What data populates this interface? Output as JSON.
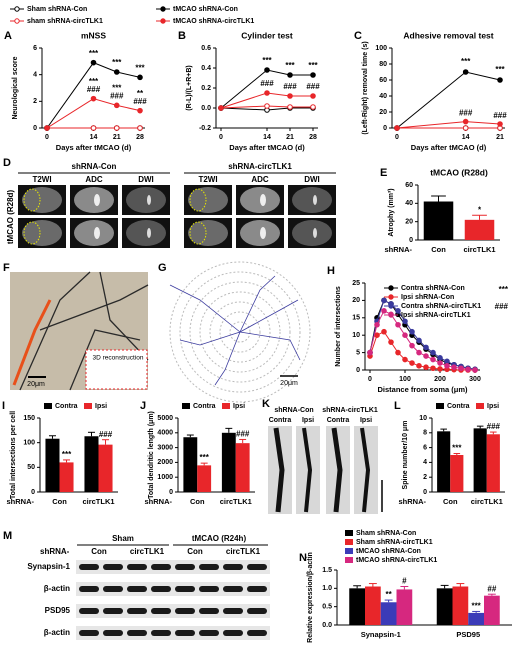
{
  "chart_data": [
    {
      "panel": "A",
      "type": "line",
      "title": "mNSS",
      "y_label": "Neurological score",
      "x_label": "Days after tMCAO (d)",
      "x": [
        0,
        14,
        21,
        28
      ],
      "xlim": [
        0,
        28
      ],
      "xticks": [
        0,
        14,
        21,
        28
      ],
      "ylim": [
        0,
        6
      ],
      "yticks": [
        0,
        2,
        4,
        6
      ],
      "series": [
        {
          "name": "Sham shRNA-Con",
          "color": "#000000",
          "marker": "open",
          "values": [
            0,
            0,
            0,
            0
          ]
        },
        {
          "name": "sham shRNA-circTLK1",
          "color": "#e8262a",
          "marker": "open",
          "values": [
            0,
            0,
            0,
            0
          ]
        },
        {
          "name": "tMCAO shRNA-Con",
          "color": "#000000",
          "marker": "filled",
          "values": [
            0,
            4.9,
            4.2,
            3.8
          ]
        },
        {
          "name": "tMCAO shRNA-circTLK1",
          "color": "#e8262a",
          "marker": "filled",
          "values": [
            0,
            2.2,
            1.7,
            1.3
          ]
        }
      ],
      "annotations": [
        "***",
        "***",
        "###",
        "***",
        "***",
        "###",
        "***",
        "**",
        "###"
      ]
    },
    {
      "panel": "B",
      "type": "line",
      "title": "Cylinder test",
      "y_label": "(R-L)/(L+R+B)",
      "x_label": "Days after tMCAO (d)",
      "x": [
        0,
        14,
        21,
        28
      ],
      "xlim": [
        0,
        28
      ],
      "xticks": [
        0,
        14,
        21,
        28
      ],
      "ylim": [
        -0.2,
        0.6
      ],
      "yticks": [
        -0.2,
        {
          "value": 0,
          "label": "0.0"
        },
        0.2,
        0.4,
        0.6
      ],
      "series": [
        {
          "color": "#000000",
          "marker": "open",
          "values": [
            0,
            -0.02,
            0,
            0
          ]
        },
        {
          "color": "#e8262a",
          "marker": "open",
          "values": [
            0,
            0.02,
            0.01,
            0.01
          ]
        },
        {
          "color": "#000000",
          "marker": "filled",
          "values": [
            0,
            0.38,
            0.33,
            0.33
          ]
        },
        {
          "color": "#e8262a",
          "marker": "filled",
          "values": [
            0,
            0.15,
            0.12,
            0.12
          ]
        }
      ],
      "annotations": [
        "***",
        "###",
        "***",
        "###",
        "***",
        "###"
      ]
    },
    {
      "panel": "C",
      "type": "line",
      "title": "Adhesive removal test",
      "y_label": "(Left-Right) removal time (s)",
      "x_label": "Days after tMCAO (d)",
      "x": [
        0,
        14,
        21
      ],
      "xlim": [
        0,
        21
      ],
      "xticks": [
        0,
        14,
        21
      ],
      "ylim": [
        0,
        100
      ],
      "yticks": [
        0,
        20,
        40,
        60,
        80,
        100
      ],
      "series": [
        {
          "color": "#000000",
          "marker": "open",
          "values": [
            0,
            0,
            0
          ]
        },
        {
          "color": "#e8262a",
          "marker": "open",
          "values": [
            0,
            0,
            0
          ]
        },
        {
          "color": "#000000",
          "marker": "filled",
          "values": [
            0,
            70,
            60
          ]
        },
        {
          "color": "#e8262a",
          "marker": "filled",
          "values": [
            0,
            8,
            5
          ]
        }
      ],
      "annotations": [
        "***",
        "###",
        "***",
        "###"
      ]
    },
    {
      "panel": "E",
      "type": "bar",
      "title": "tMCAO (R28d)",
      "y_label": "Atrophy (mm³)",
      "x_prefix": "shRNA-",
      "categories": [
        "Con",
        "circTLK1"
      ],
      "values": [
        42,
        22
      ],
      "errors": [
        6,
        5
      ],
      "colors": [
        "#000000",
        "#e8262a"
      ],
      "ylim": [
        0,
        60
      ],
      "yticks": [
        0,
        20,
        40,
        60
      ],
      "annotations": [
        "*"
      ]
    },
    {
      "panel": "H",
      "type": "line",
      "y_label": "Number of intersections",
      "x_label": "Distance from soma (μm)",
      "x": [
        0,
        20,
        40,
        60,
        80,
        100,
        120,
        140,
        160,
        180,
        200,
        220,
        240,
        260,
        280,
        300
      ],
      "xlim": [
        0,
        300
      ],
      "xticks": [
        0,
        100,
        200,
        300
      ],
      "ylim": [
        0,
        25
      ],
      "yticks": [
        0,
        5,
        10,
        15,
        20,
        25
      ],
      "series": [
        {
          "name": "Contra shRNA-Con",
          "color": "#000000",
          "marker": "filled",
          "values": [
            5,
            15,
            20,
            19,
            16,
            13,
            10,
            8,
            6,
            4.5,
            3,
            2,
            1.5,
            1,
            0.5,
            0.2
          ]
        },
        {
          "name": "Ipsi shRNA-Con",
          "color": "#e8262a",
          "marker": "filled",
          "values": [
            4,
            10,
            11,
            8,
            5,
            3,
            2,
            1.2,
            0.8,
            0.5,
            0.3,
            0.2,
            0.1,
            0,
            0,
            0
          ]
        },
        {
          "name": "Contra shRNA-circTLK1",
          "color": "#3b3b9e",
          "marker": "filled",
          "values": [
            5,
            14,
            20,
            19,
            17,
            14,
            11,
            8.5,
            6.5,
            5,
            3.5,
            2.5,
            1.5,
            1,
            0.5,
            0.2
          ]
        },
        {
          "name": "Ipsi shRNA-circTLK1",
          "color": "#d6287f",
          "marker": "filled",
          "values": [
            5,
            13,
            17,
            16,
            13,
            10,
            7,
            5,
            4,
            3,
            2,
            1.2,
            0.8,
            0.5,
            0.2,
            0
          ]
        }
      ],
      "annotations": [
        "***",
        "###"
      ]
    },
    {
      "panel": "I",
      "type": "bar",
      "y_label": "Total intersections per cell",
      "x_prefix": "shRNA-",
      "categories": [
        "Con",
        "circTLK1"
      ],
      "series": [
        {
          "name": "Contra",
          "color": "#000000",
          "values": [
            108,
            113
          ],
          "errors": [
            6,
            8
          ]
        },
        {
          "name": "Ipsi",
          "color": "#e8262a",
          "values": [
            60,
            96
          ],
          "errors": [
            5,
            10
          ]
        }
      ],
      "ylim": [
        0,
        150
      ],
      "yticks": [
        0,
        50,
        100,
        150
      ],
      "annotations": [
        "***",
        "###"
      ]
    },
    {
      "panel": "J",
      "type": "bar",
      "y_label": "Total dendritic length (μm)",
      "x_prefix": "shRNA-",
      "categories": [
        "Con",
        "circTLK1"
      ],
      "series": [
        {
          "name": "Contra",
          "color": "#000000",
          "values": [
            3700,
            4000
          ],
          "errors": [
            150,
            300
          ]
        },
        {
          "name": "Ipsi",
          "color": "#e8262a",
          "values": [
            1800,
            3300
          ],
          "errors": [
            150,
            250
          ]
        }
      ],
      "ylim": [
        0,
        5000
      ],
      "yticks": [
        0,
        1000,
        2000,
        3000,
        4000,
        5000
      ],
      "annotations": [
        "***",
        "###"
      ]
    },
    {
      "panel": "L",
      "type": "bar",
      "y_label": "Spine number/10 μm",
      "x_prefix": "shRNA-",
      "categories": [
        "Con",
        "circTLK1"
      ],
      "series": [
        {
          "name": "Contra",
          "color": "#000000",
          "values": [
            8.2,
            8.6
          ],
          "errors": [
            0.3,
            0.3
          ]
        },
        {
          "name": "Ipsi",
          "color": "#e8262a",
          "values": [
            5.0,
            7.8
          ],
          "errors": [
            0.2,
            0.3
          ]
        }
      ],
      "ylim": [
        0,
        10
      ],
      "yticks": [
        0,
        2,
        4,
        6,
        8,
        10
      ],
      "annotations": [
        "***",
        "###"
      ]
    },
    {
      "panel": "N",
      "type": "bar",
      "y_label": "Relative expression/β-actin",
      "categories": [
        "Synapsin-1",
        "PSD95"
      ],
      "series": [
        {
          "name": "Sham shRNA-Con",
          "color": "#000000",
          "values": [
            1.0,
            1.0
          ],
          "errors": [
            0.07,
            0.08
          ]
        },
        {
          "name": "Sham shRNA-circTLK1",
          "color": "#e8262a",
          "values": [
            1.05,
            1.05
          ],
          "errors": [
            0.08,
            0.08
          ]
        },
        {
          "name": "tMCAO shRNA-Con",
          "color": "#3b3bb8",
          "values": [
            0.62,
            0.33
          ],
          "errors": [
            0.06,
            0.04
          ]
        },
        {
          "name": "tMCAO shRNA-circTLK1",
          "color": "#d6287f",
          "values": [
            0.97,
            0.8
          ],
          "errors": [
            0.08,
            0.04
          ]
        }
      ],
      "ylim": [
        0,
        1.5
      ],
      "yticks": [
        {
          "value": 0,
          "label": "0.0"
        },
        {
          "value": 0.5,
          "label": "0.5"
        },
        {
          "value": 1,
          "label": "1.0"
        },
        {
          "value": 1.5,
          "label": "1.5"
        }
      ],
      "annotations": [
        "**",
        "#",
        "***",
        "##"
      ]
    }
  ],
  "panels": {
    "D": {
      "letter": "D",
      "groups": [
        "shRNA-Con",
        "shRNA-circTLK1"
      ],
      "columns": [
        "T2WI",
        "ADC",
        "DWI",
        "T2WI",
        "ADC",
        "DWI"
      ],
      "row_label": "tMCAO (R28d)"
    },
    "F": {
      "letter": "F",
      "scale_bar": "20μm",
      "inset": "3D reconstruction"
    },
    "G": {
      "letter": "G",
      "scale_bar": "20μm"
    },
    "K": {
      "letter": "K",
      "groups": [
        "shRNA-Con",
        "shRNA-circTLK1"
      ],
      "columns": [
        "Contra",
        "Ipsi",
        "Contra",
        "Ipsi"
      ]
    },
    "M": {
      "letter": "M",
      "prefix": "shRNA-",
      "groups": [
        "Sham",
        "tMCAO (R24h)"
      ],
      "columns": [
        "Con",
        "circTLK1",
        "Con",
        "circTLK1"
      ],
      "rows": [
        "Synapsin-1",
        "β-actin",
        "PSD95",
        "β-actin"
      ]
    }
  }
}
